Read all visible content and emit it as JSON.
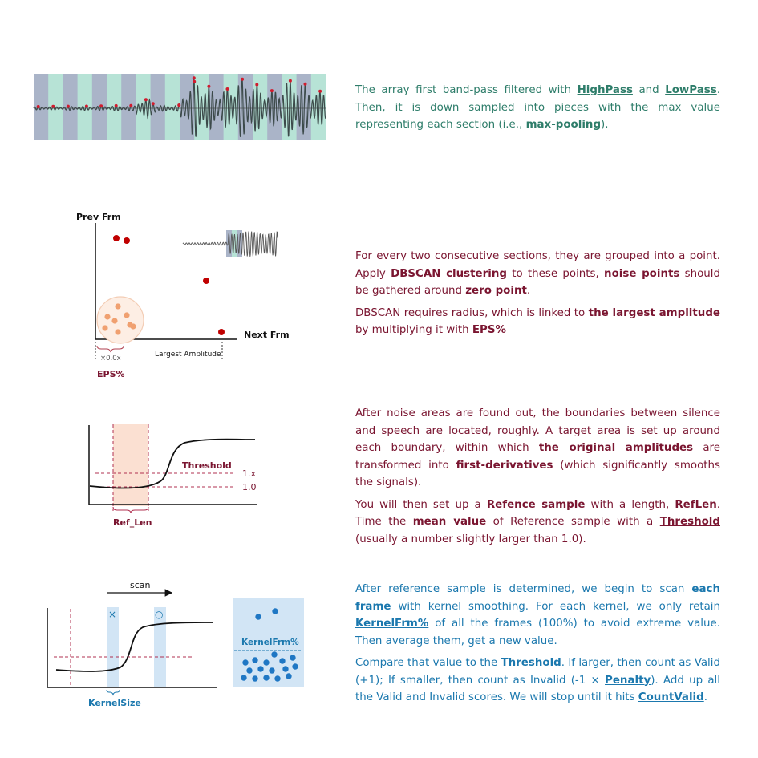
{
  "section1": {
    "para": {
      "t1": "The array first band-pass filtered with ",
      "k1": "HighPass",
      "t2": " and ",
      "k2": "LowPass",
      "t3": ". Then, it is down sampled into pieces with the max value representing each section (i.e., ",
      "k3": "max-pooling",
      "t4": ")."
    }
  },
  "section2": {
    "labels": {
      "y_axis": "Prev Frm",
      "x_axis": "Next Frm",
      "largest_amp": "Largest Amplitude",
      "eps_mult": "×0.0x",
      "eps": "EPS%"
    },
    "para1": {
      "t1": "For every two consecutive sections, they are grouped into a point. Apply ",
      "k1": "DBSCAN clustering",
      "t2": " to these points, ",
      "k2": "noise points",
      "t3": " should be gathered around ",
      "k3": "zero point",
      "t4": "."
    },
    "para2": {
      "t1": "DBSCAN requires radius, which is linked to ",
      "k1": "the largest amplitude",
      "t2": " by multiplying it with ",
      "k2": "EPS%"
    }
  },
  "section3": {
    "labels": {
      "threshold": "Threshold",
      "one_x": "1.x",
      "one_zero": "1.0",
      "ref_len": "Ref_Len"
    },
    "para1": {
      "t1": "After noise areas are found out, the boundaries between silence and speech are located, roughly. A target area is set up around each boundary, within which ",
      "k1": "the original amplitudes",
      "t2": " are transformed into ",
      "k2": "first-derivatives",
      "t3": " (which significantly smooths the signals)."
    },
    "para2": {
      "t1": "You will then set up a ",
      "k1": "Refence sample",
      "t2": " with a length, ",
      "k2": "RefLen",
      "t3": ". Time the ",
      "k3": "mean value",
      "t4": " of Reference sample with a ",
      "k4": "Threshold",
      "t5": " (usually a number slightly larger than 1.0)."
    }
  },
  "section4": {
    "labels": {
      "scan": "scan",
      "kernel_size": "KernelSize",
      "kernel_frm": "KernelFrm%",
      "reject_mark": "×",
      "accept_mark": "○"
    },
    "para1": {
      "t1": "After reference sample is determined, we begin to scan ",
      "k1": "each frame",
      "t2": " with kernel smoothing. For each kernel, we only retain ",
      "k2": "KernelFrm%",
      "t3": " of all the frames (100%) to avoid extreme value. Then average them, get a new value."
    },
    "para2": {
      "t1": "Compare that value to the ",
      "k1": "Threshold",
      "t2": ". If larger, then count as Valid (+1); If smaller, then count as Invalid (-1 × ",
      "k2": "Penalty",
      "t3": "). Add up all the Valid and Invalid scores. We will stop until it hits ",
      "k3": "CountValid",
      "t4": "."
    }
  },
  "colors": {
    "teal": "#2e7d6a",
    "maroon": "#7a1530",
    "blue": "#1b78ae",
    "red_point": "#c00000",
    "salmon_point": "#f0a070",
    "blue_point": "#1f77c4"
  }
}
